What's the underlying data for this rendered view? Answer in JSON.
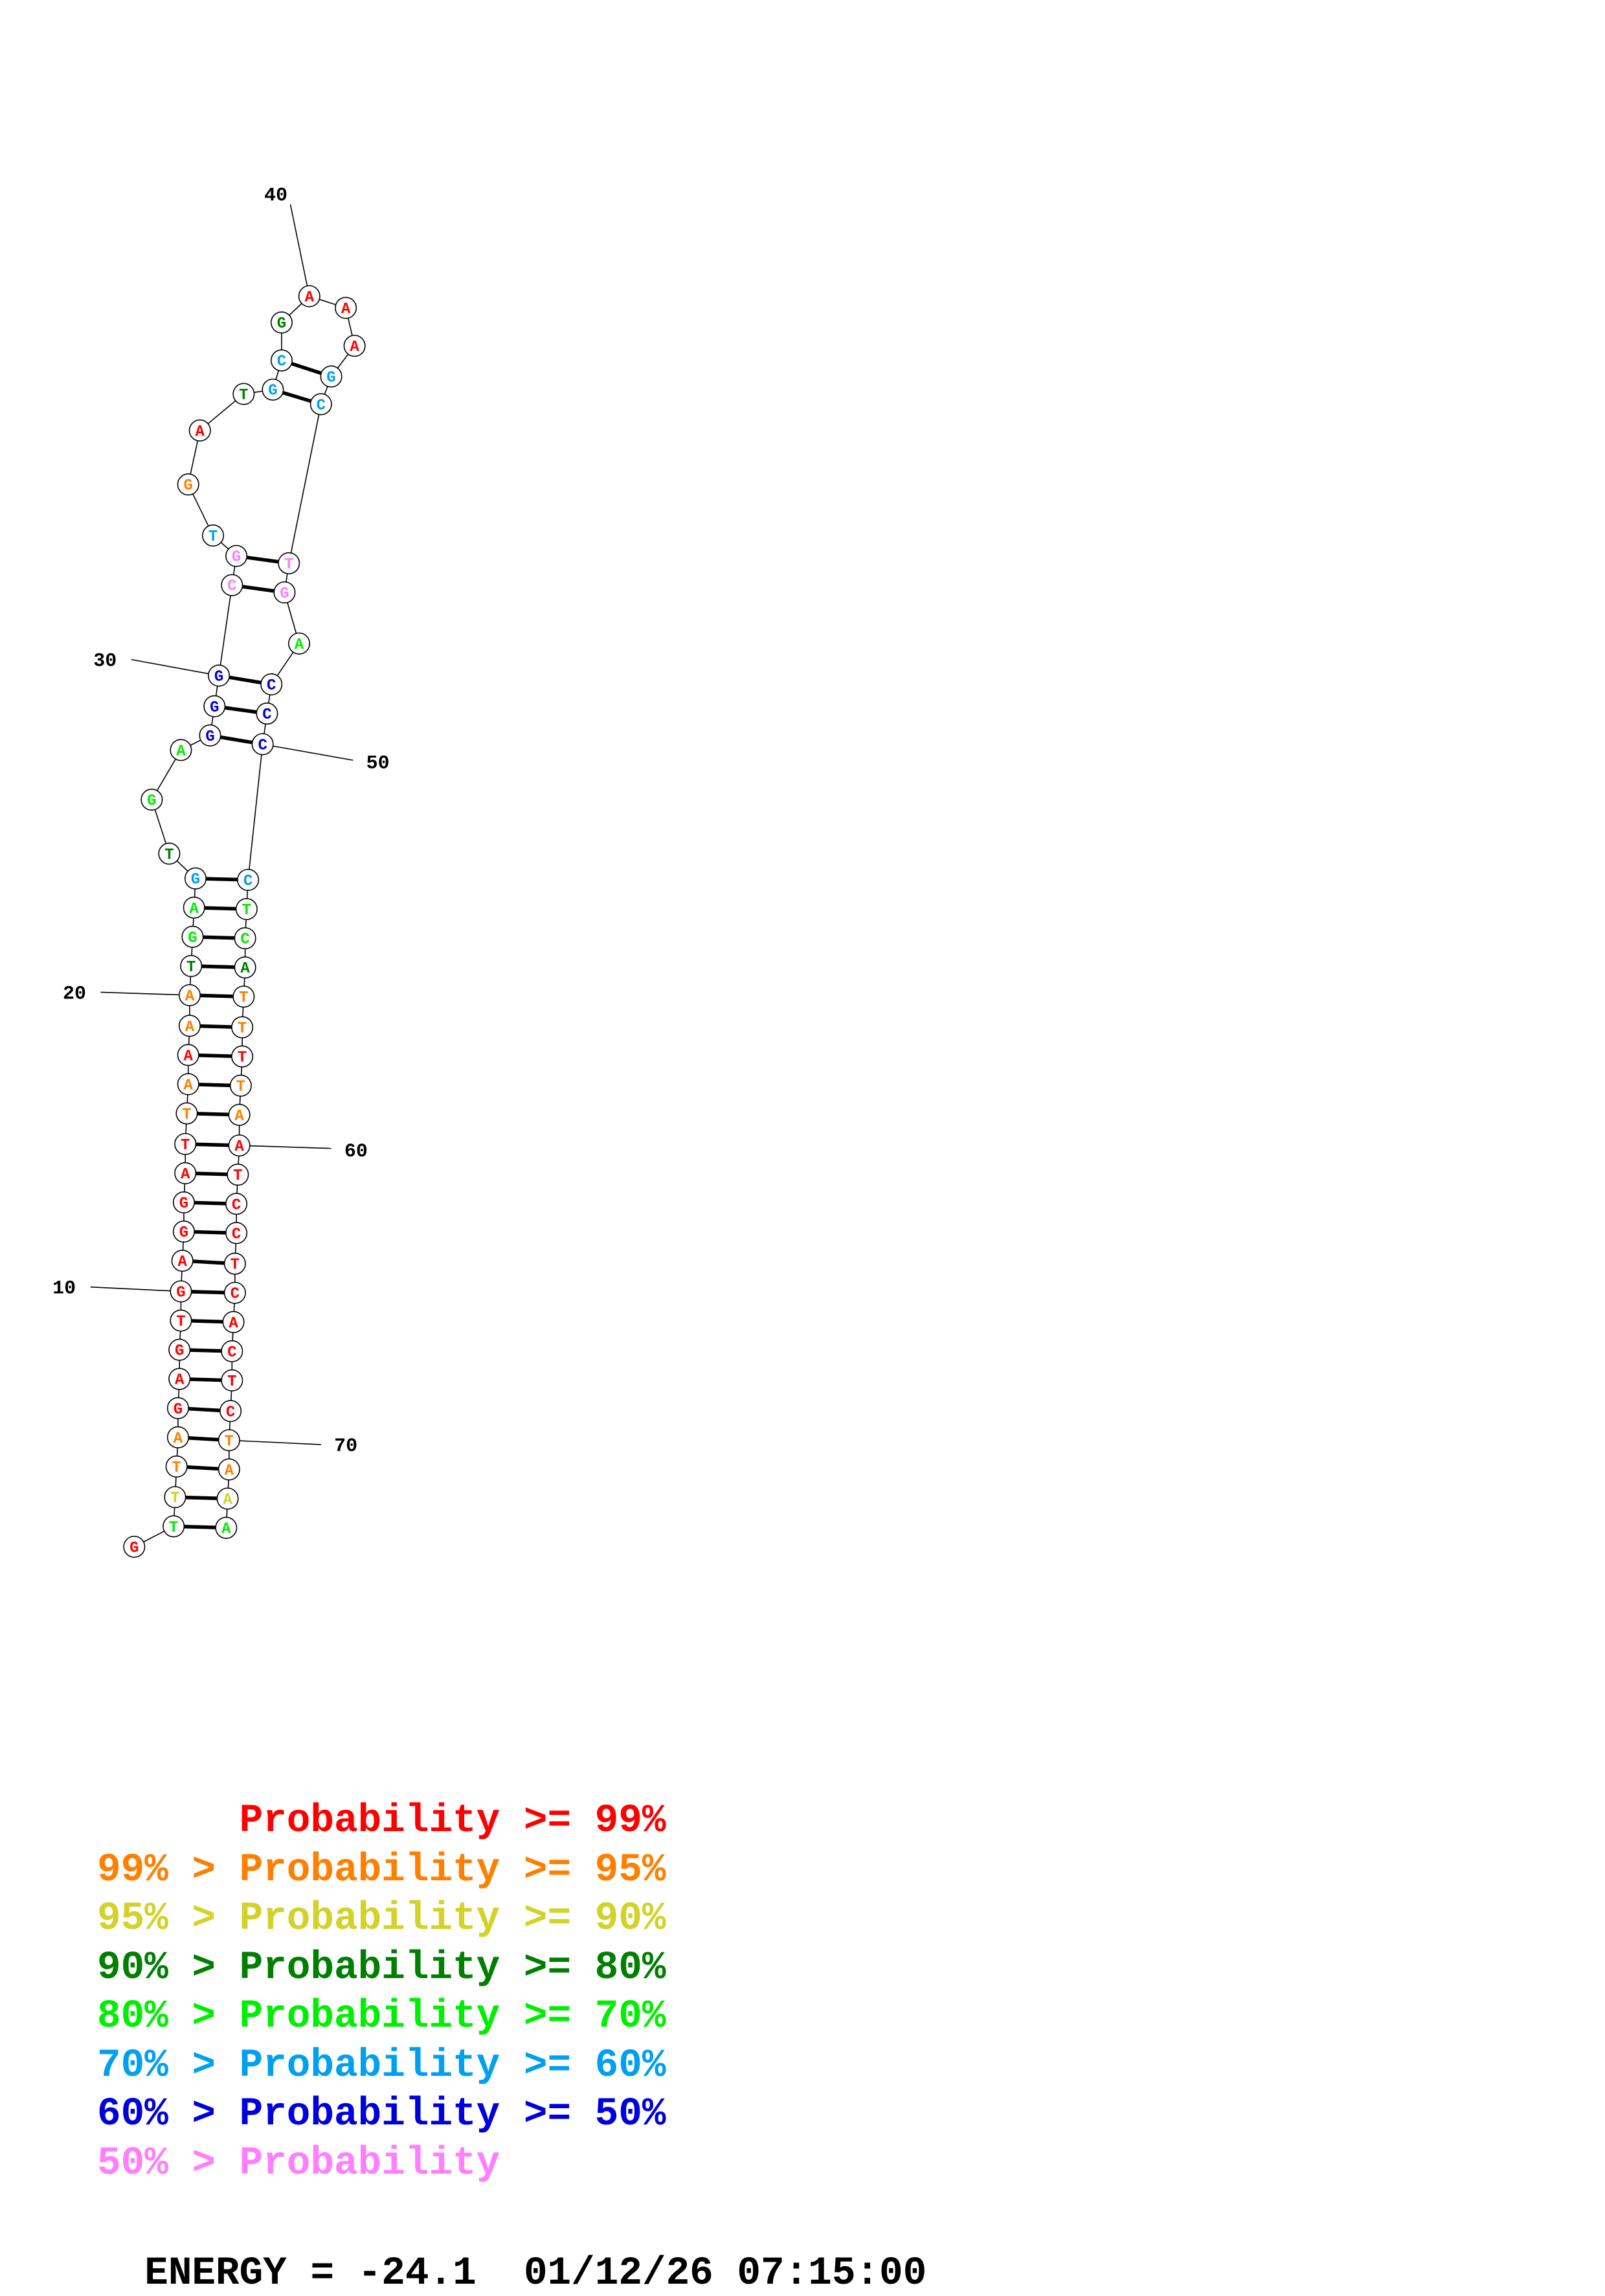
{
  "colors": {
    "red": "#ff0000",
    "orange": "#ff7f00",
    "yellow": "#d2d22a",
    "darkgreen": "#007f00",
    "green": "#00ee00",
    "cyan": "#00a0ee",
    "blue": "#0000dd",
    "pink": "#ff7fff"
  },
  "nucleotides": [
    {
      "n": 1,
      "base": "G",
      "color": "red"
    },
    {
      "n": 2,
      "base": "T",
      "color": "green"
    },
    {
      "n": 3,
      "base": "T",
      "color": "yellow"
    },
    {
      "n": 4,
      "base": "T",
      "color": "orange"
    },
    {
      "n": 5,
      "base": "A",
      "color": "orange"
    },
    {
      "n": 6,
      "base": "G",
      "color": "red"
    },
    {
      "n": 7,
      "base": "A",
      "color": "red"
    },
    {
      "n": 8,
      "base": "G",
      "color": "red"
    },
    {
      "n": 9,
      "base": "T",
      "color": "red"
    },
    {
      "n": 10,
      "base": "G",
      "color": "red"
    },
    {
      "n": 11,
      "base": "A",
      "color": "red"
    },
    {
      "n": 12,
      "base": "G",
      "color": "red"
    },
    {
      "n": 13,
      "base": "G",
      "color": "red"
    },
    {
      "n": 14,
      "base": "A",
      "color": "red"
    },
    {
      "n": 15,
      "base": "T",
      "color": "red"
    },
    {
      "n": 16,
      "base": "T",
      "color": "orange"
    },
    {
      "n": 17,
      "base": "A",
      "color": "orange"
    },
    {
      "n": 18,
      "base": "A",
      "color": "red"
    },
    {
      "n": 19,
      "base": "A",
      "color": "orange"
    },
    {
      "n": 20,
      "base": "A",
      "color": "orange"
    },
    {
      "n": 21,
      "base": "T",
      "color": "darkgreen"
    },
    {
      "n": 22,
      "base": "G",
      "color": "green"
    },
    {
      "n": 23,
      "base": "A",
      "color": "green"
    },
    {
      "n": 24,
      "base": "G",
      "color": "cyan"
    },
    {
      "n": 25,
      "base": "T",
      "color": "darkgreen"
    },
    {
      "n": 26,
      "base": "G",
      "color": "green"
    },
    {
      "n": 27,
      "base": "A",
      "color": "green"
    },
    {
      "n": 28,
      "base": "G",
      "color": "blue"
    },
    {
      "n": 29,
      "base": "G",
      "color": "blue"
    },
    {
      "n": 30,
      "base": "G",
      "color": "blue"
    },
    {
      "n": 31,
      "base": "C",
      "color": "pink"
    },
    {
      "n": 32,
      "base": "G",
      "color": "pink"
    },
    {
      "n": 33,
      "base": "T",
      "color": "cyan"
    },
    {
      "n": 34,
      "base": "G",
      "color": "orange"
    },
    {
      "n": 35,
      "base": "A",
      "color": "red"
    },
    {
      "n": 36,
      "base": "T",
      "color": "darkgreen"
    },
    {
      "n": 37,
      "base": "G",
      "color": "cyan"
    },
    {
      "n": 38,
      "base": "C",
      "color": "cyan"
    },
    {
      "n": 39,
      "base": "G",
      "color": "darkgreen"
    },
    {
      "n": 40,
      "base": "A",
      "color": "red"
    },
    {
      "n": 41,
      "base": "A",
      "color": "red"
    },
    {
      "n": 42,
      "base": "A",
      "color": "red"
    },
    {
      "n": 43,
      "base": "G",
      "color": "cyan"
    },
    {
      "n": 44,
      "base": "C",
      "color": "cyan"
    },
    {
      "n": 45,
      "base": "T",
      "color": "pink"
    },
    {
      "n": 46,
      "base": "G",
      "color": "pink"
    },
    {
      "n": 47,
      "base": "A",
      "color": "green"
    },
    {
      "n": 48,
      "base": "C",
      "color": "blue"
    },
    {
      "n": 49,
      "base": "C",
      "color": "blue"
    },
    {
      "n": 50,
      "base": "C",
      "color": "blue"
    },
    {
      "n": 51,
      "base": "C",
      "color": "cyan"
    },
    {
      "n": 52,
      "base": "T",
      "color": "green"
    },
    {
      "n": 53,
      "base": "C",
      "color": "green"
    },
    {
      "n": 54,
      "base": "A",
      "color": "darkgreen"
    },
    {
      "n": 55,
      "base": "T",
      "color": "orange"
    },
    {
      "n": 56,
      "base": "T",
      "color": "orange"
    },
    {
      "n": 57,
      "base": "T",
      "color": "red"
    },
    {
      "n": 58,
      "base": "T",
      "color": "orange"
    },
    {
      "n": 59,
      "base": "A",
      "color": "orange"
    },
    {
      "n": 60,
      "base": "A",
      "color": "red"
    },
    {
      "n": 61,
      "base": "T",
      "color": "red"
    },
    {
      "n": 62,
      "base": "C",
      "color": "red"
    },
    {
      "n": 63,
      "base": "C",
      "color": "red"
    },
    {
      "n": 64,
      "base": "T",
      "color": "red"
    },
    {
      "n": 65,
      "base": "C",
      "color": "red"
    },
    {
      "n": 66,
      "base": "A",
      "color": "red"
    },
    {
      "n": 67,
      "base": "C",
      "color": "red"
    },
    {
      "n": 68,
      "base": "T",
      "color": "red"
    },
    {
      "n": 69,
      "base": "C",
      "color": "red"
    },
    {
      "n": 70,
      "base": "T",
      "color": "orange"
    },
    {
      "n": 71,
      "base": "A",
      "color": "orange"
    },
    {
      "n": 72,
      "base": "A",
      "color": "yellow"
    },
    {
      "n": 73,
      "base": "A",
      "color": "green"
    }
  ],
  "base_pairs": [
    [
      2,
      73
    ],
    [
      3,
      72
    ],
    [
      4,
      71
    ],
    [
      5,
      70
    ],
    [
      6,
      69
    ],
    [
      7,
      68
    ],
    [
      8,
      67
    ],
    [
      9,
      66
    ],
    [
      10,
      65
    ],
    [
      11,
      64
    ],
    [
      12,
      63
    ],
    [
      13,
      62
    ],
    [
      14,
      61
    ],
    [
      15,
      60
    ],
    [
      16,
      59
    ],
    [
      17,
      58
    ],
    [
      18,
      57
    ],
    [
      19,
      56
    ],
    [
      20,
      55
    ],
    [
      21,
      54
    ],
    [
      22,
      53
    ],
    [
      23,
      52
    ],
    [
      24,
      51
    ],
    [
      28,
      50
    ],
    [
      29,
      49
    ],
    [
      30,
      48
    ],
    [
      31,
      46
    ],
    [
      32,
      45
    ],
    [
      37,
      44
    ],
    [
      38,
      43
    ]
  ],
  "index_labels": [
    "10",
    "20",
    "30",
    "40",
    "50",
    "60",
    "70"
  ],
  "legend": [
    {
      "prefix": "",
      "text": "Probability >= 99%",
      "color": "red"
    },
    {
      "prefix": "99% > ",
      "text": "Probability >= 95%",
      "color": "orange"
    },
    {
      "prefix": "95% > ",
      "text": "Probability >= 90%",
      "color": "yellow"
    },
    {
      "prefix": "90% > ",
      "text": "Probability >= 80%",
      "color": "darkgreen"
    },
    {
      "prefix": "80% > ",
      "text": "Probability >= 70%",
      "color": "green"
    },
    {
      "prefix": "70% > ",
      "text": "Probability >= 60%",
      "color": "cyan"
    },
    {
      "prefix": "60% > ",
      "text": "Probability >= 50%",
      "color": "blue"
    },
    {
      "prefix": "50% > ",
      "text": "Probability",
      "color": "pink"
    }
  ],
  "footer": {
    "energy_label": "ENERGY = ",
    "energy_value": "-24.1",
    "datetime": "01/12/26 07:15:00"
  }
}
